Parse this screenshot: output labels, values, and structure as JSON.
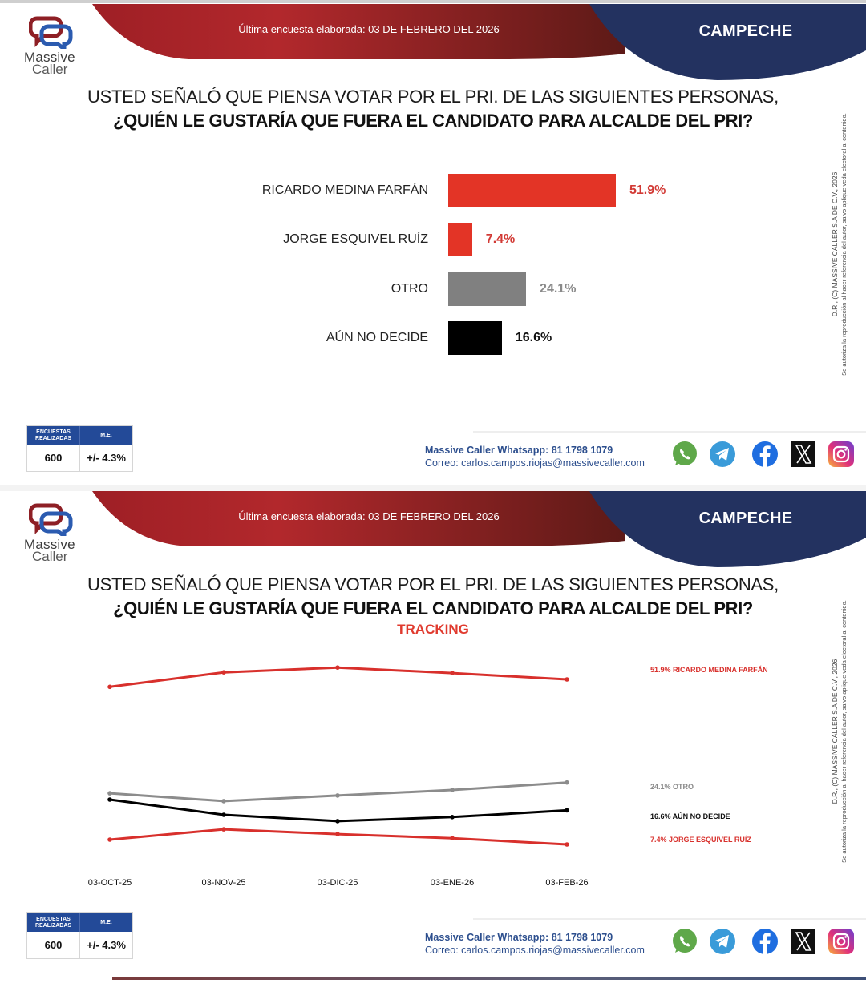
{
  "header": {
    "survey_date": "Última encuesta elaborada: 03 DE FEBRERO DEL 2026",
    "region": "CAMPECHE",
    "logo_line1": "Massive",
    "logo_line2": "Caller",
    "colors": {
      "red": "#a8242a",
      "navy": "#233260"
    }
  },
  "question": {
    "line1": "USTED SEÑALÓ QUE PIENSA VOTAR POR EL PRI. DE LAS SIGUIENTES PERSONAS,",
    "line2": "¿QUIÉN LE GUSTARÍA QUE FUERA EL CANDIDATO PARA ALCALDE DEL PRI?",
    "tracking_label": "TRACKING"
  },
  "copyright": {
    "line1": "D.R., (C) MASSIVE CALLER S.A DE C.V., 2026",
    "line2": "Se autoriza la reproducción al hacer referencia del autor, salvo aplique veda electoral al contenido."
  },
  "stats": {
    "surveys_header": "ENCUESTAS REALIZADAS",
    "me_header": "M.E.",
    "surveys_value": "600",
    "me_value": "+/- 4.3%"
  },
  "footer": {
    "whatsapp": "Massive Caller Whatsapp: 81 1798 1079",
    "email": "Correo: carlos.campos.riojas@massivecaller.com",
    "social_icons": [
      "whatsapp-icon",
      "telegram-icon",
      "facebook-icon",
      "x-icon",
      "instagram-icon"
    ]
  },
  "chart_data": [
    {
      "type": "bar",
      "orientation": "horizontal",
      "title": "¿QUIÉN LE GUSTARÍA QUE FUERA EL CANDIDATO PARA ALCALDE DEL PRI?",
      "categories": [
        "RICARDO MEDINA FARFÁN",
        "JORGE ESQUIVEL RUÍZ",
        "OTRO",
        "AÚN NO DECIDE"
      ],
      "values": [
        51.9,
        7.4,
        24.1,
        16.6
      ],
      "value_labels": [
        "51.9%",
        "7.4%",
        "24.1%",
        "16.6%"
      ],
      "colors": [
        "#e33426",
        "#e33426",
        "#808080",
        "#000000"
      ],
      "label_colors": [
        "#d23a35",
        "#d23a35",
        "#8a8a8a",
        "#111111"
      ],
      "unit": "%",
      "grid": false
    },
    {
      "type": "line",
      "title": "TRACKING",
      "x": [
        "03-OCT-25",
        "03-NOV-25",
        "03-DIC-25",
        "03-ENE-26",
        "03-FEB-26"
      ],
      "series": [
        {
          "name": "RICARDO MEDINA FARFÁN",
          "legend": "51.9% RICARDO MEDINA FARFÁN",
          "color": "#d8302c",
          "values": [
            49.9,
            53.8,
            55.1,
            53.6,
            51.9
          ]
        },
        {
          "name": "OTRO",
          "legend": "24.1% OTRO",
          "color": "#8c8c8c",
          "values": [
            21.2,
            19.1,
            20.6,
            22.1,
            24.1
          ]
        },
        {
          "name": "AÚN NO DECIDE",
          "legend": "16.6% AÚN NO DECIDE",
          "color": "#000000",
          "values": [
            19.5,
            15.4,
            13.7,
            14.8,
            16.6
          ]
        },
        {
          "name": "JORGE ESQUIVEL RUÍZ",
          "legend": "7.4% JORGE ESQUIVEL RUÍZ",
          "color": "#d8302c",
          "values": [
            8.7,
            11.5,
            10.2,
            9.1,
            7.4
          ]
        }
      ],
      "legend_placement": "right",
      "grid": false,
      "unit": "%"
    }
  ]
}
